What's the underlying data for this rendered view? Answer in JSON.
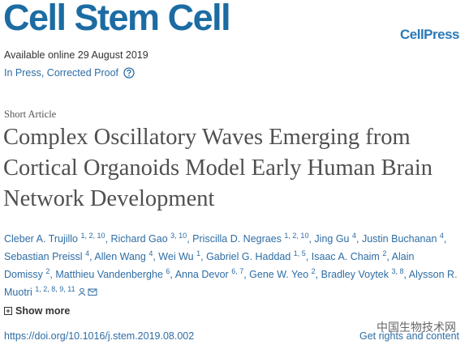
{
  "header": {
    "journal": "Cell Stem Cell",
    "publisher": "CellPress",
    "available": "Available online 29 August 2019",
    "status": "In Press, Corrected Proof"
  },
  "article": {
    "type": "Short Article",
    "title": "Complex Oscillatory Waves Emerging from Cortical Organoids Model Early Human Brain Network Development",
    "authors": [
      {
        "name": "Cleber A. Trujillo",
        "affiliations": "1, 2, 10"
      },
      {
        "name": "Richard Gao",
        "affiliations": "3, 10"
      },
      {
        "name": "Priscilla D. Negraes",
        "affiliations": "1, 2, 10"
      },
      {
        "name": "Jing Gu",
        "affiliations": "4"
      },
      {
        "name": "Justin Buchanan",
        "affiliations": "4"
      },
      {
        "name": "Sebastian Preissl",
        "affiliations": "4"
      },
      {
        "name": "Allen Wang",
        "affiliations": "4"
      },
      {
        "name": "Wei Wu",
        "affiliations": "1"
      },
      {
        "name": "Gabriel G. Haddad",
        "affiliations": "1, 5"
      },
      {
        "name": "Isaac A. Chaim",
        "affiliations": "2"
      },
      {
        "name": "Alain Domissy",
        "affiliations": "2"
      },
      {
        "name": "Matthieu Vandenberghe",
        "affiliations": "6"
      },
      {
        "name": "Anna Devor",
        "affiliations": "6, 7"
      },
      {
        "name": "Gene W. Yeo",
        "affiliations": "2"
      },
      {
        "name": "Bradley Voytek",
        "affiliations": "3, 8"
      },
      {
        "name": "Alysson R. Muotri",
        "affiliations": "1, 2, 8, 9, 11"
      }
    ],
    "author_separator": ",",
    "show_more": "Show more",
    "doi": "https://doi.org/10.1016/j.stem.2019.08.002",
    "rights": "Get rights and content"
  },
  "watermark": "中国生物技术网"
}
